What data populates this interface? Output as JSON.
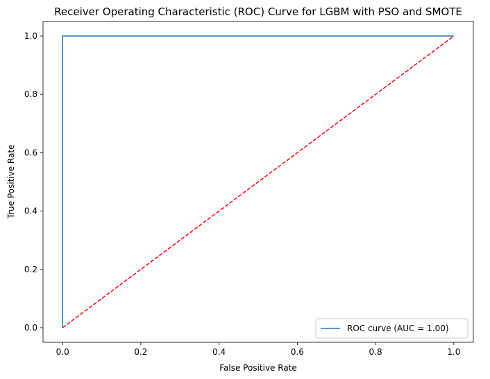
{
  "chart_data": {
    "type": "line",
    "title": "Receiver Operating Characteristic (ROC) Curve for LGBM with PSO and SMOTE",
    "xlabel": "False Positive Rate",
    "ylabel": "True Positive Rate",
    "xlim": [
      -0.05,
      1.05
    ],
    "ylim": [
      -0.05,
      1.05
    ],
    "xticks": [
      0.0,
      0.2,
      0.4,
      0.6,
      0.8,
      1.0
    ],
    "yticks": [
      0.0,
      0.2,
      0.4,
      0.6,
      0.8,
      1.0
    ],
    "xtick_labels": [
      "0.0",
      "0.2",
      "0.4",
      "0.6",
      "0.8",
      "1.0"
    ],
    "ytick_labels": [
      "0.0",
      "0.2",
      "0.4",
      "0.6",
      "0.8",
      "1.0"
    ],
    "grid": false,
    "legend_position": "lower-right",
    "series": [
      {
        "name": "ROC curve (AUC = 1.00)",
        "color": "#1f77b4",
        "style": "solid",
        "x": [
          0.0,
          0.0,
          1.0
        ],
        "y": [
          0.0,
          1.0,
          1.0
        ]
      },
      {
        "color": "#ff0000",
        "style": "dashed",
        "x": [
          0.0,
          1.0
        ],
        "y": [
          0.0,
          1.0
        ]
      }
    ]
  }
}
